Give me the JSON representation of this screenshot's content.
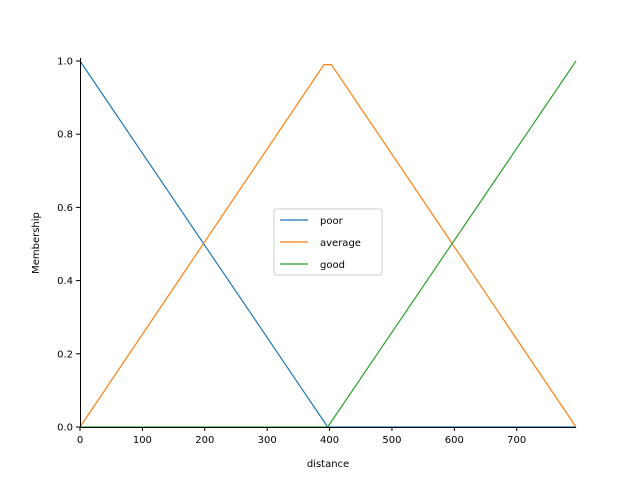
{
  "chart_data": {
    "type": "line",
    "title": "",
    "xlabel": "distance",
    "ylabel": "Membership",
    "xlim": [
      0,
      795
    ],
    "ylim": [
      0,
      1.0
    ],
    "xticks": [
      0,
      100,
      200,
      300,
      400,
      500,
      600,
      700
    ],
    "xtick_labels": [
      "0",
      "100",
      "200",
      "300",
      "400",
      "500",
      "600",
      "700"
    ],
    "yticks": [
      0,
      0.2,
      0.4,
      0.6,
      0.8,
      1.0
    ],
    "ytick_labels": [
      "0.0",
      "0.2",
      "0.4",
      "0.6",
      "0.8",
      "1.0"
    ],
    "grid": false,
    "legend_position": "center",
    "series": [
      {
        "name": "poor",
        "color": "#1f77b4",
        "x": [
          0,
          397,
          795
        ],
        "y": [
          1.0,
          0.0,
          0.0
        ]
      },
      {
        "name": "average",
        "color": "#ff7f0e",
        "x": [
          0,
          391,
          403,
          795
        ],
        "y": [
          0.0,
          0.99,
          0.99,
          0.0
        ]
      },
      {
        "name": "good",
        "color": "#2ca02c",
        "x": [
          0,
          397,
          795
        ],
        "y": [
          0.0,
          0.0,
          1.0
        ]
      }
    ]
  }
}
